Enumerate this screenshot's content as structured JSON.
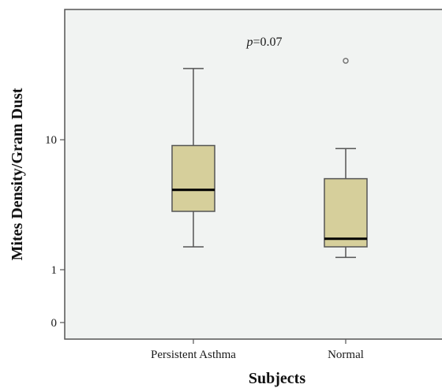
{
  "chart_data": {
    "type": "boxplot",
    "xlabel": "Subjects",
    "ylabel": "Mites Density/Gram Dust",
    "annotation": {
      "italic": "p",
      "rest": "=0.07"
    },
    "yscale": "log(y+1)",
    "ylim": [
      0,
      80
    ],
    "yticks": [
      {
        "value": 0,
        "label": "0"
      },
      {
        "value": 1,
        "label": "1"
      },
      {
        "value": 10,
        "label": "10"
      }
    ],
    "categories": [
      "Persistent Asthma",
      "Normal"
    ],
    "boxes": [
      {
        "category": "Persistent Asthma",
        "min": 1.7,
        "q1": 3.3,
        "median": 4.7,
        "q3": 9.2,
        "max": 27,
        "outliers": []
      },
      {
        "category": "Normal",
        "min": 1.35,
        "q1": 1.7,
        "median": 2.0,
        "q3": 5.6,
        "max": 8.8,
        "outliers": [
          30
        ]
      }
    ],
    "colors": {
      "plot_bg": "#f1f3f2",
      "box_fill": "#d6cf9b",
      "box_stroke": "#555555",
      "median": "#000000",
      "frame": "#555555"
    }
  }
}
